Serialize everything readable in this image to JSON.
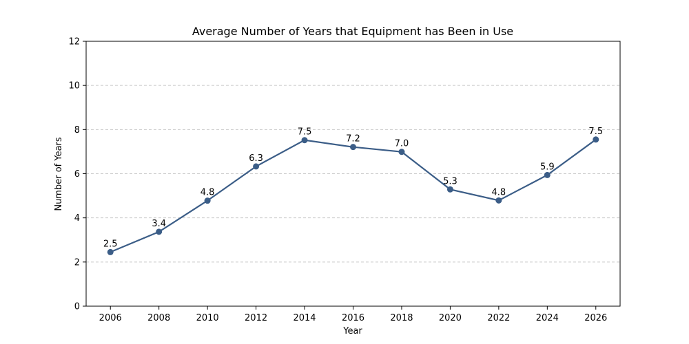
{
  "chart_data": {
    "type": "line",
    "title": "Average Number of Years that Equipment has Been in Use",
    "xlabel": "Year",
    "ylabel": "Number of Years",
    "x": [
      2006,
      2008,
      2010,
      2012,
      2014,
      2016,
      2018,
      2020,
      2022,
      2024,
      2026
    ],
    "xticks": [
      "2006",
      "2008",
      "2010",
      "2012",
      "2014",
      "2016",
      "2018",
      "2020",
      "2022",
      "2024",
      "2026"
    ],
    "xlim": [
      2005,
      2027
    ],
    "ylim": [
      0,
      12
    ],
    "yticks": [
      "0",
      "2",
      "4",
      "6",
      "8",
      "10",
      "12"
    ],
    "series": [
      {
        "values": [
          2.45,
          3.37,
          4.78,
          6.33,
          7.52,
          7.21,
          6.99,
          5.29,
          4.79,
          5.94,
          7.55
        ],
        "labels": [
          "2.5",
          "3.4",
          "4.8",
          "6.3",
          "7.5",
          "7.2",
          "7.0",
          "5.3",
          "4.8",
          "5.9",
          "7.5"
        ],
        "color": "#3b5d87"
      }
    ],
    "grid": "y-dashed",
    "legend": "none"
  }
}
